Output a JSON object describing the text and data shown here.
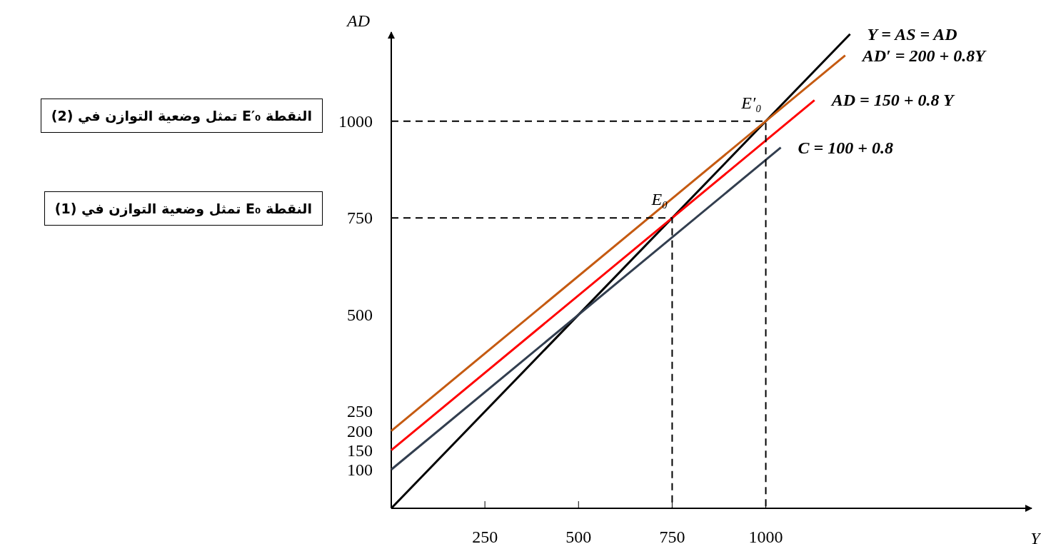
{
  "chart_data": {
    "type": "line",
    "xlabel": "Y",
    "ylabel": "AD",
    "xlim": [
      0,
      1710
    ],
    "ylim": [
      0,
      1230
    ],
    "xticks": [
      250,
      500,
      750,
      1000
    ],
    "yticks": [
      100,
      150,
      200,
      250,
      500,
      750,
      1000
    ],
    "series": [
      {
        "name": "Y = AS = AD",
        "color": "#000000",
        "x": [
          0,
          1225
        ],
        "values": [
          0,
          1225
        ]
      },
      {
        "name": "AD′ = 200 + 0.8Y",
        "color": "#c55a11",
        "x": [
          0,
          1212
        ],
        "values": [
          200,
          1170
        ]
      },
      {
        "name": "AD = 150 + 0.8 Y",
        "color": "#ff0000",
        "x": [
          0,
          1130
        ],
        "values": [
          150,
          1054
        ]
      },
      {
        "name": "C = 100 + 0.8",
        "color": "#323e4f",
        "x": [
          0,
          1040
        ],
        "values": [
          100,
          932
        ]
      },
      {
        "color": "#000000",
        "line_style": "dashed",
        "x": [
          0,
          1000,
          1000
        ],
        "values": [
          1000,
          1000,
          0
        ]
      },
      {
        "color": "#000000",
        "line_style": "dashed",
        "x": [
          0,
          750,
          750
        ],
        "values": [
          750,
          750,
          0
        ]
      }
    ],
    "annotations": [
      {
        "text": "E′₀",
        "x": 1000,
        "y": 1000
      },
      {
        "text": "E₀",
        "x": 750,
        "y": 750
      },
      "النقطة E′₀ تمثل وضعية التوازن في (2)",
      "النقطة E₀ تمثل وضعية التوازن في (1)"
    ]
  }
}
